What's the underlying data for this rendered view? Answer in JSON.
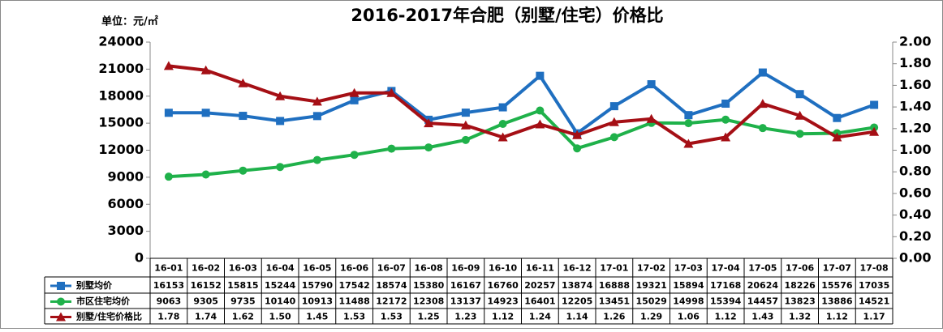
{
  "chart_data": {
    "type": "line",
    "title": "2016-2017年合肥（别墅/住宅）价格比",
    "y_label": "单位：元/㎡",
    "categories": [
      "16-01",
      "16-02",
      "16-03",
      "16-04",
      "16-05",
      "16-06",
      "16-07",
      "16-08",
      "16-09",
      "16-10",
      "16-11",
      "16-12",
      "17-01",
      "17-02",
      "17-03",
      "17-04",
      "17-05",
      "17-06",
      "17-07",
      "17-08"
    ],
    "series": [
      {
        "name": "别墅均价",
        "color": "#1f6fc0",
        "marker": "square",
        "values": [
          16153,
          16152,
          15815,
          15244,
          15790,
          17542,
          18574,
          15380,
          16167,
          16760,
          20257,
          13874,
          16888,
          19321,
          15894,
          17168,
          20624,
          18226,
          15576,
          17035
        ]
      },
      {
        "name": "市区住宅均价",
        "color": "#1fb14a",
        "marker": "circle",
        "values": [
          9063,
          9305,
          9735,
          10140,
          10913,
          11488,
          12172,
          12308,
          13137,
          14923,
          16401,
          12205,
          13451,
          15029,
          14998,
          15394,
          14457,
          13823,
          13886,
          14521
        ]
      },
      {
        "name": "别墅/住宅价格比",
        "color": "#a50f15",
        "marker": "triangle",
        "axis": "y2",
        "values": [
          1.78,
          1.74,
          1.62,
          1.5,
          1.45,
          1.53,
          1.53,
          1.25,
          1.23,
          1.12,
          1.24,
          1.14,
          1.26,
          1.29,
          1.06,
          1.12,
          1.43,
          1.32,
          1.12,
          1.17
        ],
        "value_labels": [
          "1.78",
          "1.74",
          "1.62",
          "1.50",
          "1.45",
          "1.53",
          "1.53",
          "1.25",
          "1.23",
          "1.12",
          "1.24",
          "1.14",
          "1.26",
          "1.29",
          "1.06",
          "1.12",
          "1.43",
          "1.32",
          "1.12",
          "1.17"
        ]
      }
    ],
    "ylim": [
      0,
      24000
    ],
    "yticks": [
      0,
      3000,
      6000,
      9000,
      12000,
      15000,
      18000,
      21000,
      24000
    ],
    "y2lim": [
      0,
      2
    ],
    "y2ticks": [
      {
        "value": 0,
        "label": "0.00"
      },
      {
        "value": 0.2,
        "label": "0.20"
      },
      {
        "value": 0.4,
        "label": "0.40"
      },
      {
        "value": 0.6,
        "label": "0.60"
      },
      {
        "value": 0.8,
        "label": "0.80"
      },
      {
        "value": 1,
        "label": "1.00"
      },
      {
        "value": 1.2,
        "label": "1.20"
      },
      {
        "value": 1.4,
        "label": "1.40"
      },
      {
        "value": 1.6,
        "label": "1.60"
      },
      {
        "value": 1.8,
        "label": "1.80"
      },
      {
        "value": 2,
        "label": "2.00"
      }
    ],
    "grid": false
  }
}
